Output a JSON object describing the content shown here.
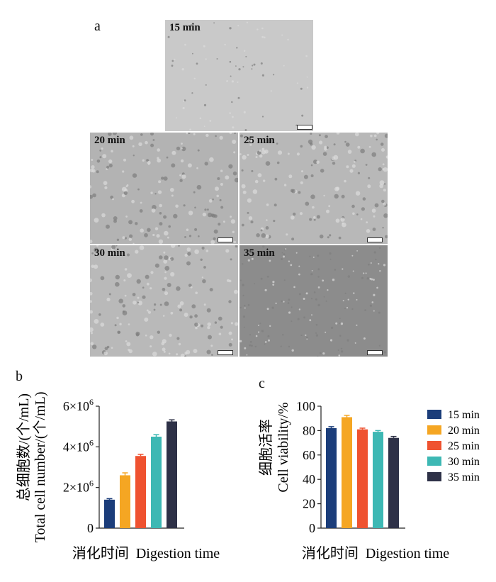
{
  "panels": {
    "a": "a",
    "b": "b",
    "c": "c"
  },
  "micrographs": [
    {
      "label": "15 min",
      "tone": "#c9c9c9"
    },
    {
      "label": "20 min",
      "tone": "#b3b3b3"
    },
    {
      "label": "25 min",
      "tone": "#b8b8b8"
    },
    {
      "label": "30 min",
      "tone": "#b9b9b9"
    },
    {
      "label": "35 min",
      "tone": "#8c8c8c"
    }
  ],
  "chart_data": [
    {
      "type": "bar",
      "categories": [
        "15 min",
        "20 min",
        "25 min",
        "30 min",
        "35 min"
      ],
      "values": [
        1400000,
        2600000,
        3550000,
        4500000,
        5250000
      ],
      "errors": [
        50000,
        120000,
        80000,
        100000,
        80000
      ],
      "ylabel_cn": "总细胞数/(个/mL)",
      "ylabel": "Total cell number/(个/mL)",
      "xlabel": "消化时间  Digestion time",
      "ylim": [
        0,
        6000000
      ],
      "yticks": [
        {
          "value": 0,
          "label": "0"
        },
        {
          "value": 2000000,
          "label": "2×10",
          "exp": "6"
        },
        {
          "value": 4000000,
          "label": "4×10",
          "exp": "6"
        },
        {
          "value": 6000000,
          "label": "6×10",
          "exp": "6"
        }
      ]
    },
    {
      "type": "bar",
      "categories": [
        "15 min",
        "20 min",
        "25 min",
        "30 min",
        "35 min"
      ],
      "values": [
        82,
        91,
        81,
        79,
        74
      ],
      "errors": [
        1.2,
        1.5,
        1.0,
        1.0,
        1.2
      ],
      "ylabel_cn": "细胞活率",
      "ylabel": "Cell viability/%",
      "xlabel": "消化时间  Digestion time",
      "ylim": [
        0,
        100
      ],
      "yticks": [
        {
          "value": 0,
          "label": "0"
        },
        {
          "value": 20,
          "label": "20"
        },
        {
          "value": 40,
          "label": "40"
        },
        {
          "value": 60,
          "label": "60"
        },
        {
          "value": 80,
          "label": "80"
        },
        {
          "value": 100,
          "label": "100"
        }
      ],
      "legend": "right"
    }
  ],
  "colors": [
    "#1b3d7a",
    "#f5a623",
    "#ef5230",
    "#3db8b4",
    "#2e3147"
  ]
}
